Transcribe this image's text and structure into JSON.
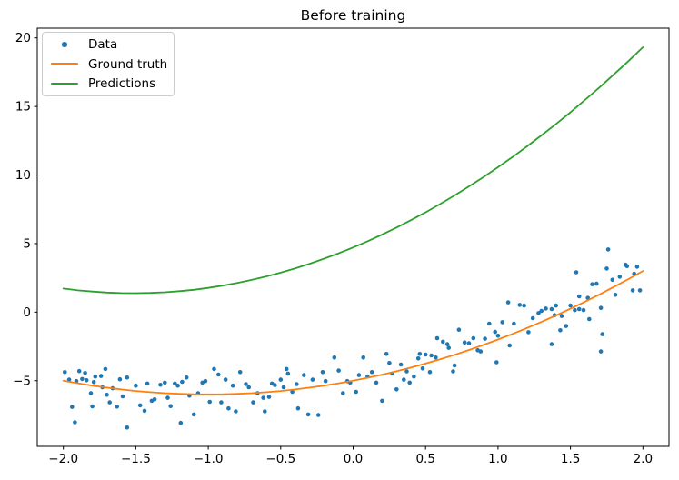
{
  "chart_data": {
    "type": "scatter",
    "title": "Before training",
    "xlabel": "",
    "ylabel": "",
    "xlim": [
      -2.18,
      2.18
    ],
    "ylim": [
      -9.79,
      20.71
    ],
    "grid": false,
    "x_ticks": {
      "values": [
        -2.0,
        -1.5,
        -1.0,
        -0.5,
        0.0,
        0.5,
        1.0,
        1.5,
        2.0
      ],
      "labels": [
        "−2.0",
        "−1.5",
        "−1.0",
        "−0.5",
        "0.0",
        "0.5",
        "1.0",
        "1.5",
        "2.0"
      ]
    },
    "y_ticks": {
      "values": [
        -5,
        0,
        5,
        10,
        15,
        20
      ],
      "labels": [
        "−5",
        "0",
        "5",
        "10",
        "15",
        "20"
      ]
    },
    "legend": {
      "position": "upper left"
    },
    "colors": {
      "data": "#1f77b4",
      "ground_truth": "#ff7f0e",
      "predictions": "#2ca02c",
      "frame": "#000000"
    },
    "series": [
      {
        "name": "Data",
        "kind": "scatter",
        "color": "#1f77b4",
        "marker": "point",
        "points": [
          [
            -1.99,
            -4.37
          ],
          [
            -1.96,
            -4.92
          ],
          [
            -1.94,
            -6.91
          ],
          [
            -1.92,
            -8.03
          ],
          [
            -1.91,
            -5.03
          ],
          [
            -1.89,
            -4.3
          ],
          [
            -1.87,
            -4.88
          ],
          [
            -1.85,
            -4.44
          ],
          [
            -1.84,
            -4.97
          ],
          [
            -1.81,
            -5.91
          ],
          [
            -1.8,
            -6.87
          ],
          [
            -1.79,
            -5.1
          ],
          [
            -1.78,
            -4.7
          ],
          [
            -1.74,
            -4.66
          ],
          [
            -1.73,
            -5.48
          ],
          [
            -1.71,
            -4.15
          ],
          [
            -1.7,
            -6.03
          ],
          [
            -1.68,
            -6.58
          ],
          [
            -1.66,
            -5.55
          ],
          [
            -1.63,
            -6.89
          ],
          [
            -1.61,
            -4.9
          ],
          [
            -1.59,
            -6.14
          ],
          [
            -1.56,
            -8.42
          ],
          [
            -1.56,
            -4.77
          ],
          [
            -1.5,
            -5.36
          ],
          [
            -1.47,
            -6.8
          ],
          [
            -1.44,
            -7.2
          ],
          [
            -1.42,
            -5.21
          ],
          [
            -1.39,
            -6.47
          ],
          [
            -1.37,
            -6.36
          ],
          [
            -1.33,
            -5.3
          ],
          [
            -1.3,
            -5.14
          ],
          [
            -1.28,
            -6.25
          ],
          [
            -1.26,
            -6.85
          ],
          [
            -1.23,
            -5.21
          ],
          [
            -1.21,
            -5.36
          ],
          [
            -1.19,
            -8.08
          ],
          [
            -1.18,
            -5.08
          ],
          [
            -1.15,
            -4.77
          ],
          [
            -1.13,
            -6.09
          ],
          [
            -1.1,
            -7.46
          ],
          [
            -1.07,
            -5.91
          ],
          [
            -1.04,
            -5.14
          ],
          [
            -1.02,
            -5.03
          ],
          [
            -0.99,
            -6.54
          ],
          [
            -0.96,
            -4.15
          ],
          [
            -0.93,
            -4.55
          ],
          [
            -0.91,
            -6.58
          ],
          [
            -0.88,
            -4.92
          ],
          [
            -0.86,
            -7.02
          ],
          [
            -0.83,
            -5.36
          ],
          [
            -0.81,
            -7.24
          ],
          [
            -0.78,
            -4.37
          ],
          [
            -0.74,
            -5.25
          ],
          [
            -0.72,
            -5.48
          ],
          [
            -0.69,
            -6.58
          ],
          [
            -0.66,
            -5.91
          ],
          [
            -0.62,
            -6.25
          ],
          [
            -0.61,
            -7.24
          ],
          [
            -0.58,
            -6.18
          ],
          [
            -0.56,
            -5.21
          ],
          [
            -0.54,
            -5.32
          ],
          [
            -0.5,
            -4.92
          ],
          [
            -0.48,
            -5.48
          ],
          [
            -0.46,
            -4.15
          ],
          [
            -0.45,
            -4.48
          ],
          [
            -0.42,
            -5.81
          ],
          [
            -0.39,
            -5.25
          ],
          [
            -0.38,
            -7.02
          ],
          [
            -0.34,
            -4.59
          ],
          [
            -0.31,
            -7.46
          ],
          [
            -0.28,
            -4.92
          ],
          [
            -0.24,
            -7.5
          ],
          [
            -0.21,
            -4.37
          ],
          [
            -0.19,
            -5.03
          ],
          [
            -0.13,
            -3.31
          ],
          [
            -0.1,
            -4.26
          ],
          [
            -0.07,
            -5.91
          ],
          [
            -0.04,
            -5.03
          ],
          [
            -0.02,
            -5.14
          ],
          [
            0.02,
            -5.81
          ],
          [
            0.04,
            -4.59
          ],
          [
            0.07,
            -3.31
          ],
          [
            0.1,
            -4.7
          ],
          [
            0.13,
            -4.37
          ],
          [
            0.16,
            -5.14
          ],
          [
            0.2,
            -6.47
          ],
          [
            0.23,
            -3.05
          ],
          [
            0.25,
            -3.71
          ],
          [
            0.27,
            -4.48
          ],
          [
            0.3,
            -5.63
          ],
          [
            0.33,
            -3.82
          ],
          [
            0.35,
            -4.92
          ],
          [
            0.37,
            -4.32
          ],
          [
            0.39,
            -5.14
          ],
          [
            0.42,
            -4.7
          ],
          [
            0.45,
            -3.38
          ],
          [
            0.46,
            -3.05
          ],
          [
            0.48,
            -4.11
          ],
          [
            0.5,
            -3.09
          ],
          [
            0.53,
            -4.37
          ],
          [
            0.54,
            -3.16
          ],
          [
            0.57,
            -3.31
          ],
          [
            0.58,
            -1.9
          ],
          [
            0.62,
            -2.16
          ],
          [
            0.65,
            -2.34
          ],
          [
            0.66,
            -2.6
          ],
          [
            0.69,
            -4.32
          ],
          [
            0.7,
            -3.89
          ],
          [
            0.73,
            -1.28
          ],
          [
            0.77,
            -2.21
          ],
          [
            0.8,
            -2.27
          ],
          [
            0.83,
            -1.9
          ],
          [
            0.86,
            -2.78
          ],
          [
            0.88,
            -2.87
          ],
          [
            0.91,
            -1.94
          ],
          [
            0.94,
            -0.84
          ],
          [
            0.98,
            -1.44
          ],
          [
            0.99,
            -3.66
          ],
          [
            1.0,
            -1.72
          ],
          [
            1.03,
            -0.73
          ],
          [
            1.07,
            0.71
          ],
          [
            1.08,
            -2.43
          ],
          [
            1.11,
            -0.84
          ],
          [
            1.15,
            0.53
          ],
          [
            1.18,
            0.48
          ],
          [
            1.21,
            -1.46
          ],
          [
            1.24,
            -0.44
          ],
          [
            1.28,
            -0.07
          ],
          [
            1.3,
            0.09
          ],
          [
            1.33,
            0.26
          ],
          [
            1.37,
            0.22
          ],
          [
            1.37,
            -2.34
          ],
          [
            1.39,
            -0.22
          ],
          [
            1.4,
            0.48
          ],
          [
            1.43,
            -1.32
          ],
          [
            1.44,
            -0.28
          ],
          [
            1.47,
            -1.01
          ],
          [
            1.5,
            0.48
          ],
          [
            1.53,
            0.15
          ],
          [
            1.54,
            2.91
          ],
          [
            1.56,
            1.15
          ],
          [
            1.56,
            0.22
          ],
          [
            1.59,
            0.15
          ],
          [
            1.62,
            1.04
          ],
          [
            1.63,
            -0.51
          ],
          [
            1.65,
            2.03
          ],
          [
            1.68,
            2.07
          ],
          [
            1.71,
            0.31
          ],
          [
            1.71,
            -2.87
          ],
          [
            1.72,
            -1.61
          ],
          [
            1.75,
            3.18
          ],
          [
            1.76,
            4.57
          ],
          [
            1.79,
            2.36
          ],
          [
            1.81,
            1.26
          ],
          [
            1.84,
            2.58
          ],
          [
            1.88,
            3.46
          ],
          [
            1.89,
            3.36
          ],
          [
            1.93,
            1.59
          ],
          [
            1.94,
            2.8
          ],
          [
            1.96,
            3.31
          ],
          [
            1.98,
            1.59
          ]
        ]
      },
      {
        "name": "Ground truth",
        "kind": "line",
        "color": "#ff7f0e",
        "points": [
          [
            -2.0,
            -5.0
          ],
          [
            -1.9,
            -5.19
          ],
          [
            -1.8,
            -5.36
          ],
          [
            -1.7,
            -5.51
          ],
          [
            -1.6,
            -5.64
          ],
          [
            -1.5,
            -5.75
          ],
          [
            -1.4,
            -5.84
          ],
          [
            -1.3,
            -5.91
          ],
          [
            -1.2,
            -5.96
          ],
          [
            -1.1,
            -5.99
          ],
          [
            -1.0,
            -6.0
          ],
          [
            -0.9,
            -5.99
          ],
          [
            -0.8,
            -5.96
          ],
          [
            -0.7,
            -5.91
          ],
          [
            -0.6,
            -5.84
          ],
          [
            -0.5,
            -5.75
          ],
          [
            -0.4,
            -5.64
          ],
          [
            -0.3,
            -5.51
          ],
          [
            -0.2,
            -5.36
          ],
          [
            -0.1,
            -5.19
          ],
          [
            0.0,
            -5.0
          ],
          [
            0.1,
            -4.79
          ],
          [
            0.2,
            -4.56
          ],
          [
            0.3,
            -4.31
          ],
          [
            0.4,
            -4.04
          ],
          [
            0.5,
            -3.75
          ],
          [
            0.6,
            -3.44
          ],
          [
            0.7,
            -3.11
          ],
          [
            0.8,
            -2.76
          ],
          [
            0.9,
            -2.39
          ],
          [
            1.0,
            -2.0
          ],
          [
            1.1,
            -1.59
          ],
          [
            1.2,
            -1.16
          ],
          [
            1.3,
            -0.71
          ],
          [
            1.4,
            -0.24
          ],
          [
            1.5,
            0.25
          ],
          [
            1.6,
            0.76
          ],
          [
            1.7,
            1.29
          ],
          [
            1.8,
            1.84
          ],
          [
            1.9,
            2.41
          ],
          [
            2.0,
            3.0
          ]
        ]
      },
      {
        "name": "Predictions",
        "kind": "line",
        "color": "#2ca02c",
        "points": [
          [
            -2.0,
            1.72
          ],
          [
            -1.9,
            1.59
          ],
          [
            -1.8,
            1.5
          ],
          [
            -1.7,
            1.43
          ],
          [
            -1.6,
            1.39
          ],
          [
            -1.5,
            1.38
          ],
          [
            -1.4,
            1.4
          ],
          [
            -1.3,
            1.45
          ],
          [
            -1.2,
            1.53
          ],
          [
            -1.1,
            1.63
          ],
          [
            -1.0,
            1.77
          ],
          [
            -0.9,
            1.93
          ],
          [
            -0.8,
            2.13
          ],
          [
            -0.7,
            2.35
          ],
          [
            -0.6,
            2.6
          ],
          [
            -0.5,
            2.88
          ],
          [
            -0.4,
            3.19
          ],
          [
            -0.3,
            3.53
          ],
          [
            -0.2,
            3.9
          ],
          [
            -0.1,
            4.29
          ],
          [
            0.0,
            4.72
          ],
          [
            0.1,
            5.17
          ],
          [
            0.2,
            5.66
          ],
          [
            0.3,
            6.17
          ],
          [
            0.4,
            6.71
          ],
          [
            0.5,
            7.28
          ],
          [
            0.6,
            7.88
          ],
          [
            0.7,
            8.51
          ],
          [
            0.8,
            9.17
          ],
          [
            0.9,
            9.85
          ],
          [
            1.0,
            10.57
          ],
          [
            1.1,
            11.31
          ],
          [
            1.2,
            12.09
          ],
          [
            1.3,
            12.89
          ],
          [
            1.4,
            13.72
          ],
          [
            1.5,
            14.58
          ],
          [
            1.6,
            15.47
          ],
          [
            1.7,
            16.39
          ],
          [
            1.8,
            17.34
          ],
          [
            1.9,
            18.31
          ],
          [
            2.0,
            19.32
          ]
        ]
      }
    ]
  }
}
